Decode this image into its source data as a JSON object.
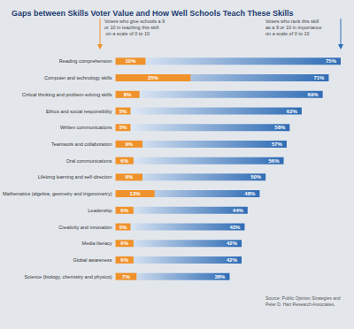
{
  "chart_data": {
    "type": "bar",
    "title": "Gaps between Skills Voter Value and How Well Schools Teach These Skills",
    "orientation": "horizontal",
    "categories": [
      "Reading comprehension",
      "Computer and technology skills",
      "Critical thinking and problem-solving skills",
      "Ethics and social responsibility",
      "Written communications",
      "Teamwork and collaboration",
      "Oral communications",
      "Lifelong learning and self-direction",
      "Mathematics (algebra, geometry and trigonometry)",
      "Leadership",
      "Creativity and innovation",
      "Media literacy",
      "Global awareness",
      "Science (biology, chemistry and physics)"
    ],
    "series": [
      {
        "name": "Voters who rank this skill as a 9 or 10 in importance on a scale of 0 to 10",
        "color": "#2f6cb5",
        "values": [
          75,
          71,
          69,
          62,
          58,
          57,
          56,
          50,
          48,
          44,
          43,
          42,
          42,
          38
        ],
        "value_labels": [
          "75%",
          "71%",
          "69%",
          "62%",
          "58%",
          "57%",
          "56%",
          "50%",
          "48%",
          "44%",
          "43%",
          "42%",
          "42%",
          "38%"
        ]
      },
      {
        "name": "Voters who give schools a 9 or 10 in teaching this skill on a scale of 0 to 10",
        "color": "#f0922b",
        "values": [
          10,
          25,
          8,
          5,
          5,
          9,
          6,
          9,
          13,
          6,
          5,
          6,
          6,
          7
        ],
        "value_labels": [
          "10%",
          "25%",
          "8%",
          "5%",
          "5%",
          "9%",
          "6%",
          "9%",
          "13%",
          "6%",
          "5%",
          "6%",
          "6%",
          "7%"
        ]
      }
    ],
    "xlim": [
      0,
      75
    ],
    "data_labels": true,
    "tick_labels": "y",
    "grid": false,
    "annotations": [
      "Source: Public Opinion Strategies and Peter D. Hart Research Associates."
    ]
  }
}
